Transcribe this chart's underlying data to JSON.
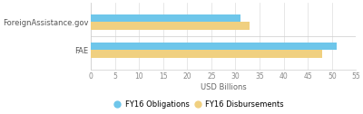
{
  "categories": [
    "FAE",
    "ForeignAssistance.gov"
  ],
  "obligations": [
    51,
    31
  ],
  "disbursements": [
    48,
    33
  ],
  "bar_color_obligations": "#6EC6EA",
  "bar_color_disbursements": "#F0D080",
  "xlabel": "USD Billions",
  "xlim": [
    0,
    55
  ],
  "xticks": [
    0,
    5,
    10,
    15,
    20,
    25,
    30,
    35,
    40,
    45,
    50,
    55
  ],
  "legend_obligations": "FY16 Obligations",
  "legend_disbursements": "FY16 Disbursements",
  "bar_height": 0.28,
  "figsize": [
    4.0,
    1.26
  ],
  "dpi": 100,
  "background_color": "#ffffff"
}
